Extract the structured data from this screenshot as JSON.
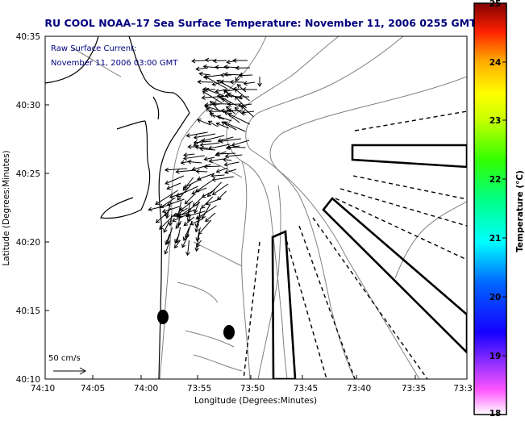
{
  "title": "RU COOL  NOAA–17  Sea Surface Temperature:  November 11, 2006 0255 GMT",
  "annotation": {
    "line1": "Raw Surface Current:",
    "line2": "November 11, 2006 03:00 GMT"
  },
  "scale_label": "50 cm/s",
  "axes": {
    "xlabel": "Longitude (Degrees:Minutes)",
    "ylabel": "Latitude (Degrees:Minutes)",
    "xticks": [
      "74:10",
      "74:05",
      "74:00",
      "73:55",
      "73:50",
      "73:45",
      "73:40",
      "73:35",
      "73:3"
    ],
    "yticks": [
      "40:35",
      "40:30",
      "40:25",
      "40:20",
      "40:15",
      "40:10"
    ]
  },
  "colorbar": {
    "label": "Temperature (°C)",
    "ticks": [
      "25",
      "24",
      "23",
      "22",
      "21",
      "20",
      "19",
      "18"
    ],
    "min": 18,
    "max": 25
  },
  "colors": {
    "title": "#000080",
    "annotation": "#000080",
    "frame": "#000000",
    "land": "#ffffff",
    "contour": "#808080",
    "coast": "#000000"
  }
}
